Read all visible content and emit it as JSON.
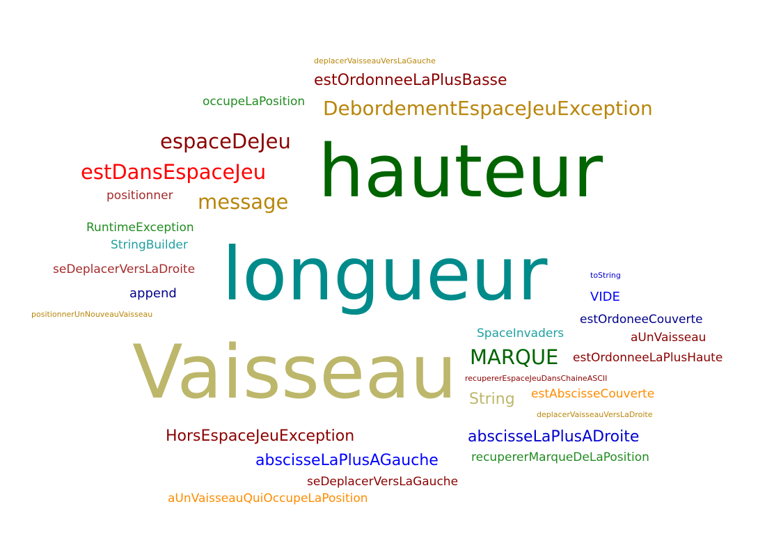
{
  "words": [
    {
      "text": "deplacerVaisseauVersLaGauche",
      "color": "#b8860b"
    },
    {
      "text": "estOrdonneeLaPlusBasse",
      "color": "#8b0000"
    },
    {
      "text": "occupeLaPosition",
      "color": "#228b22"
    },
    {
      "text": "DebordementEspaceJeuException",
      "color": "#b8860b"
    },
    {
      "text": "espaceDeJeu",
      "color": "#8b0000"
    },
    {
      "text": "hauteur",
      "color": "#006400"
    },
    {
      "text": "estDansEspaceJeu",
      "color": "#ff0000"
    },
    {
      "text": "positionner",
      "color": "#a52a2a"
    },
    {
      "text": "message",
      "color": "#b8860b"
    },
    {
      "text": "RuntimeException",
      "color": "#228b22"
    },
    {
      "text": "StringBuilder",
      "color": "#20a0a0"
    },
    {
      "text": "longueur",
      "color": "#008b8b"
    },
    {
      "text": "seDeplacerVersLaDroite",
      "color": "#a52a2a"
    },
    {
      "text": "toString",
      "color": "#0000cd"
    },
    {
      "text": "append",
      "color": "#00008b"
    },
    {
      "text": "VIDE",
      "color": "#0000ff"
    },
    {
      "text": "positionnerUnNouveauVaisseau",
      "color": "#b8860b"
    },
    {
      "text": "estOrdoneeCouverte",
      "color": "#00008b"
    },
    {
      "text": "SpaceInvaders",
      "color": "#20a0a0"
    },
    {
      "text": "aUnVaisseau",
      "color": "#8b0000"
    },
    {
      "text": "Vaisseau",
      "color": "#bdb76b"
    },
    {
      "text": "MARQUE",
      "color": "#006400"
    },
    {
      "text": "estOrdonneeLaPlusHaute",
      "color": "#8b0000"
    },
    {
      "text": "recupererEspaceJeuDansChaineASCII",
      "color": "#8b0000"
    },
    {
      "text": "String",
      "color": "#bdb76b"
    },
    {
      "text": "estAbscisseCouverte",
      "color": "#ff8c00"
    },
    {
      "text": "deplacerVaisseauVersLaDroite",
      "color": "#b8860b"
    },
    {
      "text": "HorsEspaceJeuException",
      "color": "#8b0000"
    },
    {
      "text": "abscisseLaPlusADroite",
      "color": "#0000cd"
    },
    {
      "text": "abscisseLaPlusAGauche",
      "color": "#0000ff"
    },
    {
      "text": "recupererMarqueDeLaPosition",
      "color": "#228b22"
    },
    {
      "text": "seDeplacerVersLaGauche",
      "color": "#8b0000"
    },
    {
      "text": "aUnVaisseauQuiOccupeLaPosition",
      "color": "#ff8c00"
    }
  ]
}
